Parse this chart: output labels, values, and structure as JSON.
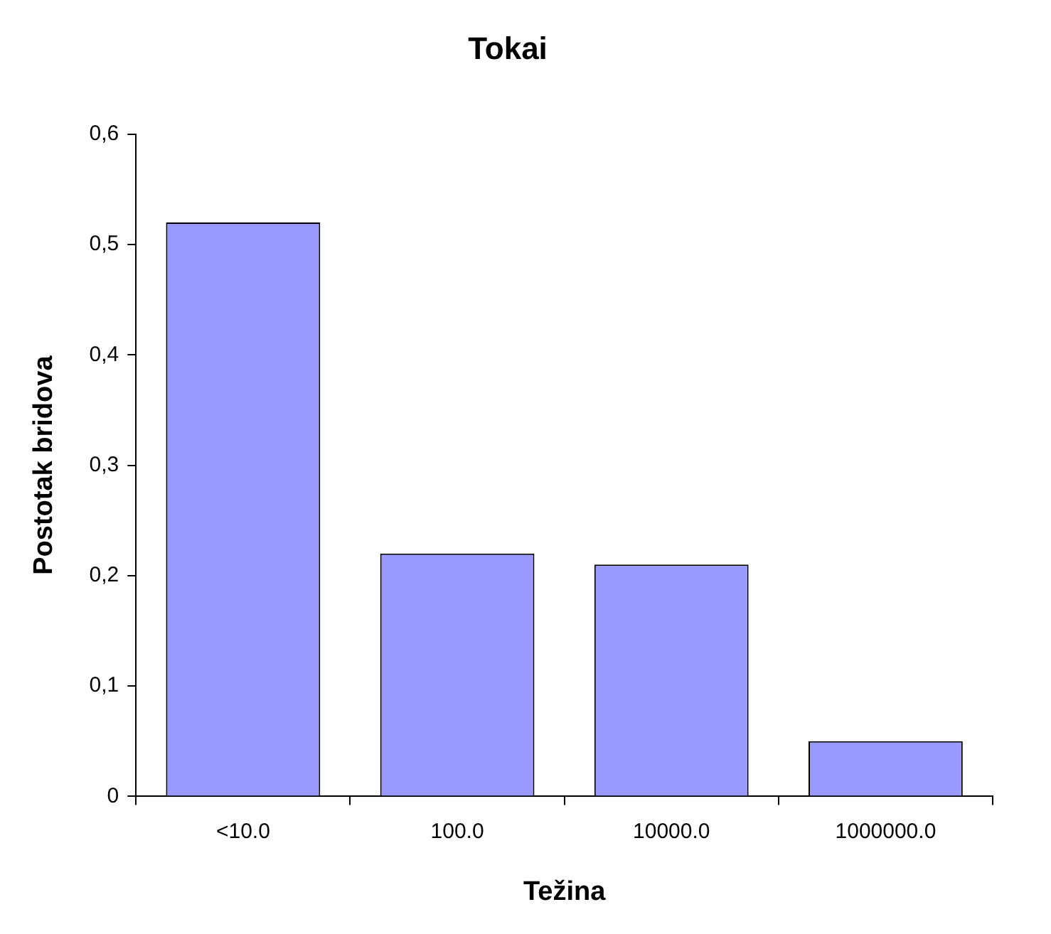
{
  "chart_data": {
    "type": "bar",
    "title": "Tokai",
    "xlabel": "Težina",
    "ylabel": "Postotak bridova",
    "categories": [
      "<10.0",
      "100.0",
      "10000.0",
      "1000000.0"
    ],
    "values": [
      0.52,
      0.22,
      0.21,
      0.05
    ],
    "color": "#9999ff",
    "ylim": [
      0,
      0.6
    ],
    "yticks": [
      0,
      {
        "value": 0.1,
        "label": "0,1"
      },
      {
        "value": 0.2,
        "label": "0,2"
      },
      {
        "value": 0.3,
        "label": "0,3"
      },
      {
        "value": 0.4,
        "label": "0,4"
      },
      {
        "value": 0.5,
        "label": "0,5"
      },
      {
        "value": 0.6,
        "label": "0,6"
      }
    ],
    "grid": false,
    "legend": false
  }
}
